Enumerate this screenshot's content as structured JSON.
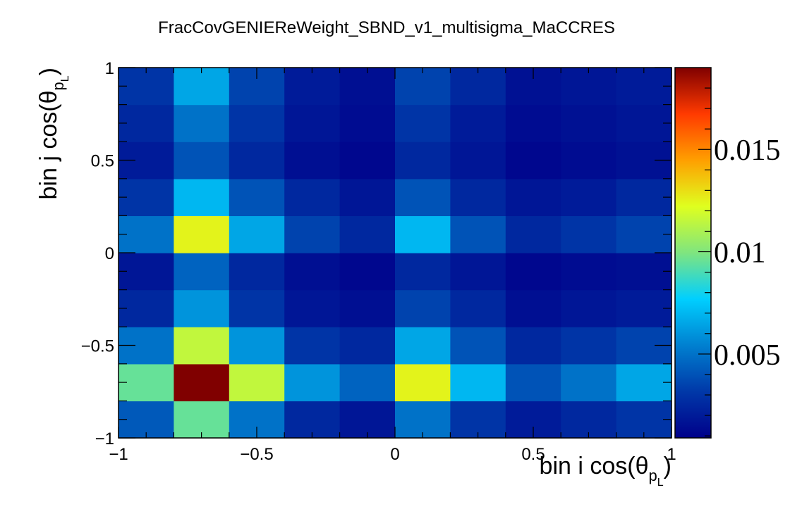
{
  "chart_data": {
    "type": "heatmap",
    "title": "FracCovGENIEReWeight_SBND_v1_multisigma_MaCCRES",
    "xlabel": {
      "main": "bin i cos(θ",
      "sub": "p",
      "subsub": "L",
      "close": ")"
    },
    "ylabel": {
      "main": "bin j cos(θ",
      "sub": "p",
      "subsub": "L",
      "close": ")"
    },
    "xlim": [
      -1,
      1
    ],
    "ylim": [
      -1,
      1
    ],
    "x_ticks": [
      {
        "value": -1,
        "label": "−1"
      },
      {
        "value": -0.5,
        "label": "−0.5"
      },
      {
        "value": 0,
        "label": "0"
      },
      {
        "value": 0.5,
        "label": "0.5"
      },
      {
        "value": 1,
        "label": "1"
      }
    ],
    "y_ticks": [
      {
        "value": -1,
        "label": "−1"
      },
      {
        "value": -0.5,
        "label": "−0.5"
      },
      {
        "value": 0,
        "label": "0"
      },
      {
        "value": 0.5,
        "label": "0.5"
      },
      {
        "value": 1,
        "label": "1"
      }
    ],
    "x_bin_edges": [
      -1,
      -0.8,
      -0.6,
      -0.4,
      -0.2,
      0,
      0.2,
      0.4,
      0.6,
      0.8,
      1
    ],
    "y_bin_edges": [
      -1,
      -0.8,
      -0.6,
      -0.4,
      -0.2,
      0,
      0.2,
      0.4,
      0.6,
      0.8,
      1
    ],
    "z_rows_bottom_to_top": [
      [
        0.0042,
        0.0095,
        0.005,
        0.0025,
        0.0018,
        0.005,
        0.003,
        0.002,
        0.0025,
        0.003
      ],
      [
        0.0095,
        0.019,
        0.0115,
        0.006,
        0.0045,
        0.0125,
        0.007,
        0.004,
        0.005,
        0.0065
      ],
      [
        0.005,
        0.0115,
        0.006,
        0.003,
        0.0025,
        0.0065,
        0.004,
        0.0025,
        0.003,
        0.0035
      ],
      [
        0.0025,
        0.006,
        0.003,
        0.0018,
        0.0015,
        0.0035,
        0.0025,
        0.0015,
        0.0018,
        0.002
      ],
      [
        0.0018,
        0.0045,
        0.0025,
        0.0015,
        0.0012,
        0.0025,
        0.0018,
        0.0012,
        0.0014,
        0.0015
      ],
      [
        0.005,
        0.0125,
        0.0065,
        0.0035,
        0.0025,
        0.007,
        0.004,
        0.0025,
        0.003,
        0.0035
      ],
      [
        0.003,
        0.007,
        0.004,
        0.0025,
        0.0018,
        0.004,
        0.0025,
        0.0018,
        0.002,
        0.0025
      ],
      [
        0.002,
        0.004,
        0.0025,
        0.0015,
        0.0012,
        0.0025,
        0.0018,
        0.0012,
        0.0014,
        0.0016
      ],
      [
        0.0025,
        0.005,
        0.003,
        0.0018,
        0.0014,
        0.003,
        0.002,
        0.0014,
        0.0016,
        0.0018
      ],
      [
        0.003,
        0.0065,
        0.0035,
        0.002,
        0.0015,
        0.0035,
        0.0025,
        0.0016,
        0.0018,
        0.002
      ]
    ],
    "z_range": [
      0.0009,
      0.019
    ],
    "colorbar_ticks": [
      {
        "value": 0.005,
        "label": "0.005"
      },
      {
        "value": 0.01,
        "label": "0.01"
      },
      {
        "value": 0.015,
        "label": "0.015"
      }
    ],
    "colormap": "rainbow",
    "colorbar_stops": [
      "#00008a",
      "#0038a8",
      "#0080d0",
      "#00cfff",
      "#7fe57f",
      "#dfff1f",
      "#ff9f00",
      "#ff3a00",
      "#800000"
    ],
    "grid": false
  }
}
